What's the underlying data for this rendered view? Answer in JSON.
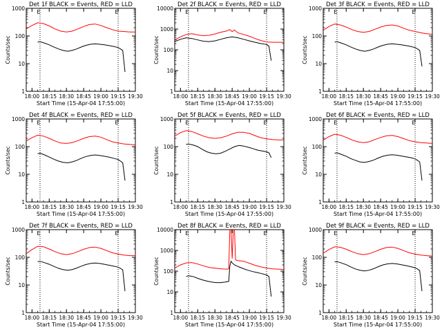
{
  "ylabel": "Counts/sec",
  "xlabel": "Start Time (15-Apr-04 17:55:00)",
  "x_ticks": [
    "18:00",
    "18:15",
    "18:30",
    "18:45",
    "19:00",
    "19:15",
    "19:30"
  ],
  "x_range_min": [
    0,
    95
  ],
  "markers": [
    {
      "label": "E",
      "x_min": 12
    },
    {
      "label": "E",
      "x_min": 80
    }
  ],
  "colors": {
    "events": "#000000",
    "lld": "#ff0000",
    "axes": "#000000"
  },
  "chart_data": [
    {
      "type": "line",
      "title": "Det 1f BLACK = Events, RED = LLD",
      "ylim": [
        1,
        1000
      ],
      "yscale": "log",
      "y_ticks": [
        "1",
        "10",
        "100",
        "1000"
      ],
      "series": [
        {
          "name": "Events",
          "x": [
            10,
            12,
            16,
            20,
            24,
            28,
            32,
            36,
            40,
            44,
            48,
            52,
            56,
            60,
            64,
            68,
            72,
            76,
            80,
            82,
            84,
            86
          ],
          "y": [
            60,
            62,
            55,
            48,
            40,
            34,
            30,
            28,
            30,
            34,
            40,
            46,
            50,
            52,
            50,
            48,
            45,
            42,
            38,
            34,
            30,
            5
          ]
        },
        {
          "name": "LLD",
          "x": [
            -5,
            0,
            5,
            10,
            15,
            20,
            25,
            30,
            35,
            40,
            45,
            50,
            55,
            60,
            65,
            70,
            75,
            80,
            85,
            90,
            95
          ],
          "y": [
            150,
            180,
            240,
            300,
            280,
            230,
            180,
            150,
            140,
            150,
            180,
            220,
            260,
            270,
            240,
            200,
            170,
            150,
            145,
            140,
            140
          ]
        }
      ]
    },
    {
      "type": "line",
      "title": "Det 2f BLACK = Events, RED = LLD",
      "ylim": [
        1,
        10000
      ],
      "yscale": "log",
      "y_ticks": [
        "1",
        "10",
        "100",
        "1000",
        "10000"
      ],
      "series": [
        {
          "name": "Events",
          "x": [
            -5,
            0,
            5,
            10,
            15,
            20,
            25,
            30,
            35,
            40,
            45,
            50,
            55,
            60,
            65,
            70,
            75,
            80,
            82,
            84
          ],
          "y": [
            200,
            250,
            320,
            380,
            350,
            300,
            260,
            250,
            270,
            320,
            380,
            420,
            380,
            320,
            270,
            230,
            200,
            180,
            150,
            30
          ]
        },
        {
          "name": "LLD",
          "x": [
            -5,
            0,
            5,
            10,
            15,
            20,
            25,
            30,
            35,
            40,
            45,
            48,
            50,
            52,
            55,
            60,
            65,
            70,
            75,
            80,
            85,
            90,
            95
          ],
          "y": [
            230,
            300,
            420,
            550,
            600,
            520,
            480,
            500,
            580,
            700,
            800,
            950,
            750,
            900,
            650,
            550,
            450,
            350,
            280,
            240,
            230,
            230,
            230
          ]
        }
      ]
    },
    {
      "type": "line",
      "title": "Det 3f BLACK = Events, RED = LLD",
      "ylim": [
        1,
        1000
      ],
      "yscale": "log",
      "y_ticks": [
        "1",
        "10",
        "100",
        "1000"
      ],
      "series": [
        {
          "name": "Events",
          "x": [
            10,
            12,
            16,
            20,
            24,
            28,
            32,
            36,
            40,
            44,
            48,
            52,
            56,
            60,
            64,
            68,
            72,
            76,
            80,
            82,
            84,
            86
          ],
          "y": [
            60,
            62,
            55,
            48,
            40,
            34,
            30,
            28,
            30,
            34,
            40,
            46,
            50,
            52,
            50,
            48,
            45,
            42,
            38,
            34,
            30,
            8
          ]
        },
        {
          "name": "LLD",
          "x": [
            -5,
            0,
            5,
            10,
            15,
            20,
            25,
            30,
            35,
            40,
            45,
            50,
            55,
            60,
            65,
            70,
            75,
            80,
            85,
            90,
            95
          ],
          "y": [
            130,
            160,
            220,
            270,
            250,
            210,
            170,
            145,
            135,
            145,
            175,
            210,
            240,
            250,
            230,
            190,
            160,
            145,
            130,
            120,
            115
          ]
        }
      ]
    },
    {
      "type": "line",
      "title": "Det 4f BLACK = Events, RED = LLD",
      "ylim": [
        1,
        1000
      ],
      "yscale": "log",
      "y_ticks": [
        "1",
        "10",
        "100",
        "1000"
      ],
      "series": [
        {
          "name": "Events",
          "x": [
            10,
            12,
            16,
            20,
            24,
            28,
            32,
            36,
            40,
            44,
            48,
            52,
            56,
            60,
            64,
            68,
            72,
            76,
            80,
            82,
            84,
            86
          ],
          "y": [
            55,
            58,
            50,
            42,
            35,
            30,
            27,
            26,
            28,
            32,
            38,
            44,
            48,
            50,
            48,
            45,
            42,
            38,
            34,
            30,
            26,
            6
          ]
        },
        {
          "name": "LLD",
          "x": [
            -5,
            0,
            5,
            10,
            15,
            20,
            25,
            30,
            35,
            40,
            45,
            50,
            55,
            60,
            65,
            70,
            75,
            80,
            85,
            90,
            95
          ],
          "y": [
            130,
            160,
            210,
            260,
            240,
            200,
            160,
            135,
            130,
            140,
            165,
            200,
            230,
            240,
            220,
            180,
            150,
            135,
            125,
            120,
            115
          ]
        }
      ]
    },
    {
      "type": "line",
      "title": "Det 5f BLACK = Events, RED = LLD",
      "ylim": [
        1,
        1000
      ],
      "yscale": "log",
      "y_ticks": [
        "1",
        "10",
        "100",
        "1000"
      ],
      "series": [
        {
          "name": "Events",
          "x": [
            10,
            12,
            16,
            20,
            24,
            28,
            32,
            36,
            40,
            44,
            48,
            52,
            56,
            60,
            64,
            68,
            72,
            76,
            80,
            82,
            84
          ],
          "y": [
            120,
            125,
            115,
            100,
            80,
            65,
            58,
            55,
            58,
            68,
            82,
            100,
            110,
            105,
            95,
            85,
            75,
            70,
            65,
            60,
            40
          ]
        },
        {
          "name": "LLD",
          "x": [
            -5,
            0,
            5,
            10,
            15,
            20,
            25,
            30,
            35,
            40,
            45,
            50,
            55,
            60,
            65,
            70,
            75,
            80,
            85,
            90,
            95
          ],
          "y": [
            190,
            240,
            320,
            380,
            350,
            290,
            240,
            210,
            200,
            210,
            240,
            290,
            330,
            330,
            300,
            250,
            210,
            190,
            180,
            175,
            175
          ]
        }
      ]
    },
    {
      "type": "line",
      "title": "Det 6f BLACK = Events, RED = LLD",
      "ylim": [
        1,
        1000
      ],
      "yscale": "log",
      "y_ticks": [
        "1",
        "10",
        "100",
        "1000"
      ],
      "series": [
        {
          "name": "Events",
          "x": [
            10,
            12,
            16,
            20,
            24,
            28,
            32,
            36,
            40,
            44,
            48,
            52,
            56,
            60,
            64,
            68,
            72,
            76,
            80,
            82,
            84,
            86
          ],
          "y": [
            58,
            60,
            52,
            45,
            37,
            32,
            28,
            27,
            29,
            33,
            39,
            45,
            49,
            51,
            49,
            46,
            43,
            40,
            36,
            32,
            28,
            6
          ]
        },
        {
          "name": "LLD",
          "x": [
            -5,
            0,
            5,
            10,
            15,
            20,
            25,
            30,
            35,
            40,
            45,
            50,
            55,
            60,
            65,
            70,
            75,
            80,
            85,
            90,
            95
          ],
          "y": [
            140,
            170,
            230,
            280,
            260,
            215,
            175,
            150,
            140,
            150,
            180,
            215,
            245,
            255,
            230,
            195,
            165,
            150,
            140,
            135,
            130
          ]
        }
      ]
    },
    {
      "type": "line",
      "title": "Det 7f BLACK = Events, RED = LLD",
      "ylim": [
        1,
        1000
      ],
      "yscale": "log",
      "y_ticks": [
        "1",
        "10",
        "100",
        "1000"
      ],
      "series": [
        {
          "name": "Events",
          "x": [
            10,
            12,
            16,
            20,
            24,
            28,
            32,
            36,
            40,
            44,
            48,
            52,
            56,
            60,
            64,
            68,
            72,
            76,
            80,
            82,
            84,
            86
          ],
          "y": [
            70,
            72,
            64,
            56,
            47,
            40,
            36,
            34,
            36,
            41,
            48,
            55,
            60,
            62,
            60,
            56,
            52,
            48,
            44,
            40,
            35,
            6
          ]
        },
        {
          "name": "LLD",
          "x": [
            -5,
            0,
            5,
            10,
            15,
            20,
            25,
            30,
            35,
            40,
            45,
            50,
            55,
            60,
            65,
            70,
            75,
            80,
            85,
            90,
            95
          ],
          "y": [
            100,
            135,
            190,
            250,
            240,
            200,
            160,
            135,
            125,
            135,
            160,
            195,
            225,
            235,
            210,
            175,
            145,
            130,
            120,
            115,
            115
          ]
        }
      ]
    },
    {
      "type": "line",
      "title": "Det 8f BLACK = Events, RED = LLD",
      "ylim": [
        1,
        10000
      ],
      "yscale": "log",
      "y_ticks": [
        "1",
        "10",
        "100",
        "1000",
        "10000"
      ],
      "series": [
        {
          "name": "Events",
          "x": [
            10,
            12,
            16,
            20,
            24,
            28,
            32,
            36,
            40,
            44,
            47,
            48,
            49,
            50,
            52,
            56,
            60,
            64,
            68,
            72,
            76,
            80,
            82,
            84
          ],
          "y": [
            55,
            60,
            55,
            45,
            38,
            33,
            30,
            28,
            28,
            30,
            32,
            180,
            300,
            250,
            200,
            160,
            130,
            110,
            95,
            85,
            75,
            65,
            55,
            6
          ]
        },
        {
          "name": "LLD",
          "x": [
            -5,
            0,
            5,
            10,
            15,
            20,
            25,
            30,
            35,
            40,
            44,
            46,
            47,
            48,
            49,
            50,
            51,
            52,
            53,
            55,
            60,
            65,
            70,
            75,
            80,
            85,
            90,
            95
          ],
          "y": [
            110,
            140,
            200,
            250,
            260,
            220,
            180,
            150,
            140,
            130,
            125,
            125,
            130,
            10000,
            10000,
            400,
            10000,
            10000,
            350,
            320,
            300,
            240,
            190,
            160,
            140,
            130,
            125,
            120
          ]
        }
      ]
    },
    {
      "type": "line",
      "title": "Det 9f BLACK = Events, RED = LLD",
      "ylim": [
        1,
        1000
      ],
      "yscale": "log",
      "y_ticks": [
        "1",
        "10",
        "100",
        "1000"
      ],
      "series": [
        {
          "name": "Events",
          "x": [
            10,
            12,
            16,
            20,
            24,
            28,
            32,
            36,
            40,
            44,
            48,
            52,
            56,
            60,
            64,
            68,
            72,
            76,
            80,
            82,
            84,
            86
          ],
          "y": [
            68,
            70,
            62,
            54,
            45,
            38,
            34,
            32,
            34,
            39,
            46,
            53,
            58,
            60,
            58,
            54,
            50,
            46,
            42,
            38,
            33,
            6
          ]
        },
        {
          "name": "LLD",
          "x": [
            -5,
            0,
            5,
            10,
            15,
            20,
            25,
            30,
            35,
            40,
            45,
            50,
            55,
            60,
            65,
            70,
            75,
            80,
            85,
            90,
            95
          ],
          "y": [
            110,
            140,
            190,
            240,
            230,
            195,
            160,
            135,
            125,
            135,
            160,
            195,
            225,
            235,
            210,
            175,
            145,
            130,
            120,
            115,
            110
          ]
        }
      ]
    }
  ]
}
